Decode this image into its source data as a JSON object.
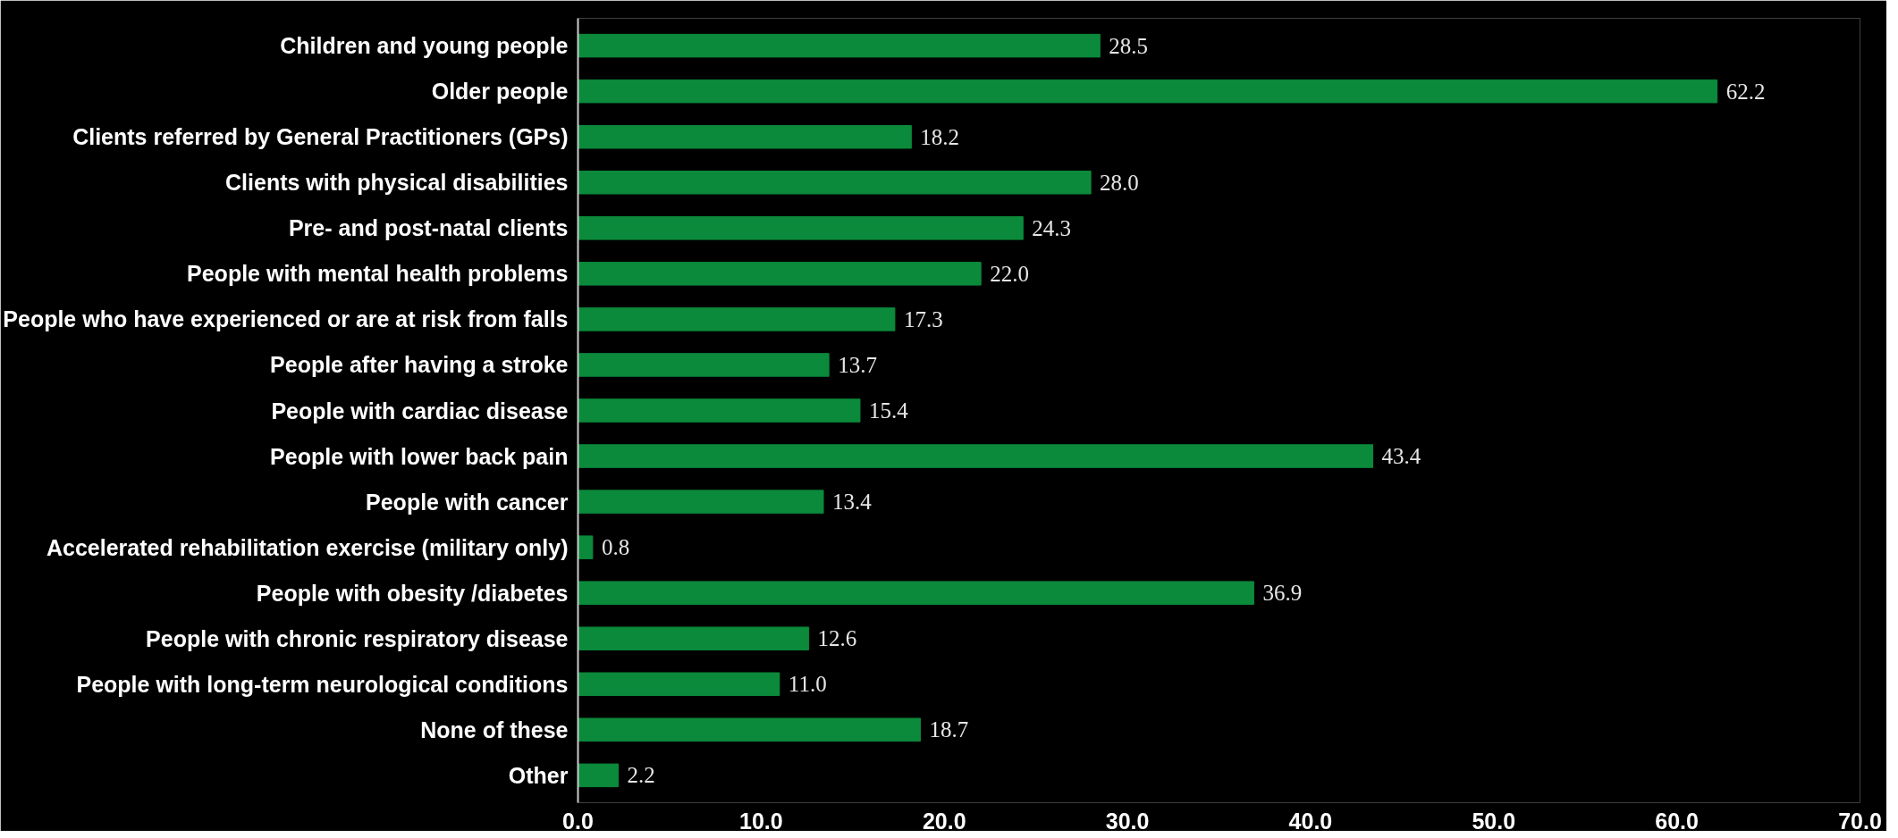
{
  "chart_data": {
    "type": "bar",
    "orientation": "horizontal",
    "categories": [
      "Children and young people",
      "Older people",
      "Clients referred by General Practitioners (GPs)",
      "Clients with physical disabilities",
      "Pre- and post-natal clients",
      "People with mental health problems",
      "People who have experienced or are at risk from falls",
      "People after having a stroke",
      "People with cardiac disease",
      "People with lower back pain",
      "People with cancer",
      "Accelerated rehabilitation exercise (military only)",
      "People with obesity /diabetes",
      "People with chronic respiratory disease",
      "People with long-term neurological conditions",
      "None of these",
      "Other"
    ],
    "values": [
      28.5,
      62.2,
      18.2,
      28.0,
      24.3,
      22.0,
      17.3,
      13.7,
      15.4,
      43.4,
      13.4,
      0.8,
      36.9,
      12.6,
      11.0,
      18.7,
      2.2
    ],
    "value_labels": [
      "28.5",
      "62.2",
      "18.2",
      "28.0",
      "24.3",
      "22.0",
      "17.3",
      "13.7",
      "15.4",
      "43.4",
      "13.4",
      "0.8",
      "36.9",
      "12.6",
      "11.0",
      "18.7",
      "2.2"
    ],
    "color": "#0b8a3b",
    "xlim": [
      0,
      70
    ],
    "xticks": [
      {
        "value": 0,
        "label": "0.0"
      },
      {
        "value": 10,
        "label": "10.0"
      },
      {
        "value": 20,
        "label": "20.0"
      },
      {
        "value": 30,
        "label": "30.0"
      },
      {
        "value": 40,
        "label": "40.0"
      },
      {
        "value": 50,
        "label": "50.0"
      },
      {
        "value": 60,
        "label": "60.0"
      },
      {
        "value": 70,
        "label": "70.0"
      }
    ],
    "grid": false
  }
}
